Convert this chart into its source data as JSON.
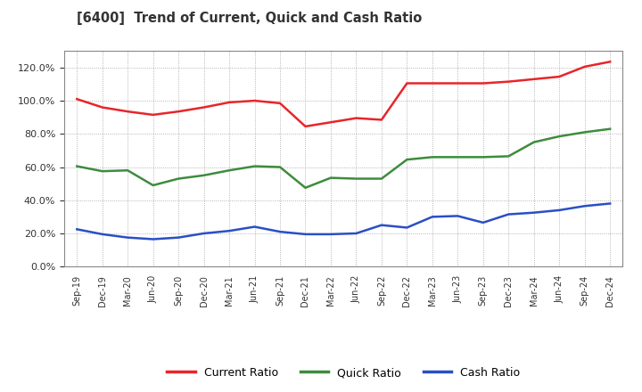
{
  "title": "[6400]  Trend of Current, Quick and Cash Ratio",
  "x_labels": [
    "Sep-19",
    "Dec-19",
    "Mar-20",
    "Jun-20",
    "Sep-20",
    "Dec-20",
    "Mar-21",
    "Jun-21",
    "Sep-21",
    "Dec-21",
    "Mar-22",
    "Jun-22",
    "Sep-22",
    "Dec-22",
    "Mar-23",
    "Jun-23",
    "Sep-23",
    "Dec-23",
    "Mar-24",
    "Jun-24",
    "Sep-24",
    "Dec-24"
  ],
  "current_ratio": [
    1.01,
    0.96,
    0.935,
    0.915,
    0.935,
    0.96,
    0.99,
    1.0,
    0.985,
    0.845,
    0.87,
    0.895,
    0.885,
    1.105,
    1.105,
    1.105,
    1.105,
    1.115,
    1.13,
    1.145,
    1.205,
    1.235
  ],
  "quick_ratio": [
    0.605,
    0.575,
    0.58,
    0.49,
    0.53,
    0.55,
    0.58,
    0.605,
    0.6,
    0.475,
    0.535,
    0.53,
    0.53,
    0.645,
    0.66,
    0.66,
    0.66,
    0.665,
    0.75,
    0.785,
    0.81,
    0.83
  ],
  "cash_ratio": [
    0.225,
    0.195,
    0.175,
    0.165,
    0.175,
    0.2,
    0.215,
    0.24,
    0.21,
    0.195,
    0.195,
    0.2,
    0.25,
    0.235,
    0.3,
    0.305,
    0.265,
    0.315,
    0.325,
    0.34,
    0.365,
    0.38
  ],
  "current_color": "#e8252a",
  "quick_color": "#3d8c3d",
  "cash_color": "#2a4fc4",
  "bg_color": "#ffffff",
  "plot_bg_color": "#ffffff",
  "grid_color": "#888888",
  "ylim": [
    0.0,
    1.3
  ],
  "yticks": [
    0.0,
    0.2,
    0.4,
    0.6,
    0.8,
    1.0,
    1.2
  ],
  "legend_labels": [
    "Current Ratio",
    "Quick Ratio",
    "Cash Ratio"
  ],
  "line_width": 1.8
}
